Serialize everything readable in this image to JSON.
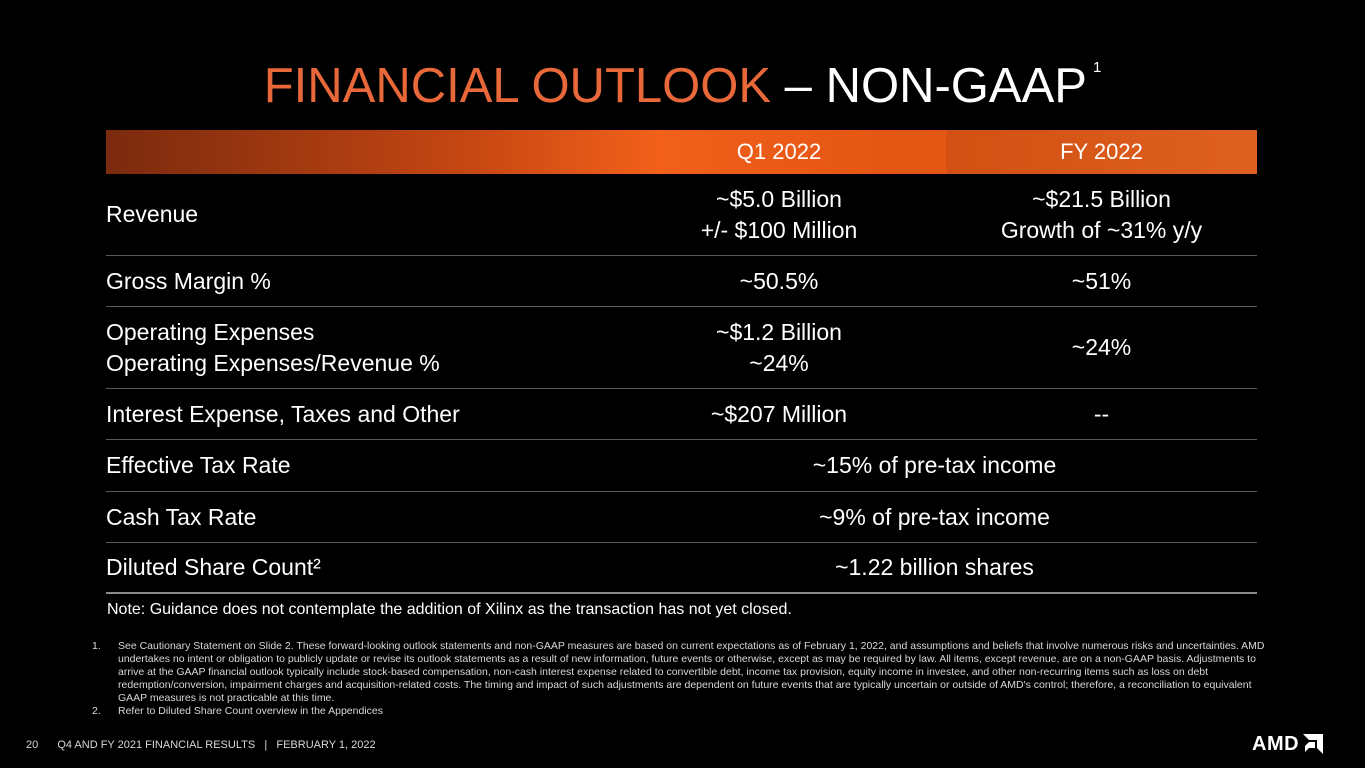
{
  "title": {
    "part1": "FINANCIAL OUTLOOK",
    "dash": "–",
    "part2": "NON-GAAP",
    "sup": "1"
  },
  "table": {
    "headers": [
      "",
      "Q1 2022",
      "FY 2022"
    ],
    "rows": {
      "revenue": {
        "label": "Revenue",
        "q1_line1": "~$5.0 Billion",
        "q1_line2": "+/- $100 Million",
        "fy_line1": "~$21.5 Billion",
        "fy_line2": "Growth of ~31% y/y"
      },
      "gross_margin": {
        "label": "Gross Margin %",
        "q1": "~50.5%",
        "fy": "~51%"
      },
      "opex": {
        "label_line1": "Operating Expenses",
        "label_line2": "Operating Expenses/Revenue %",
        "q1_line1": "~$1.2 Billion",
        "q1_line2": "~24%",
        "fy": "~24%"
      },
      "interest": {
        "label": "Interest Expense, Taxes and Other",
        "q1": "~$207 Million",
        "fy": "--"
      },
      "tax_rate": {
        "label": "Effective Tax Rate",
        "value": "~15% of pre-tax income"
      },
      "cash_tax": {
        "label": "Cash Tax Rate",
        "value": "~9% of pre-tax income"
      },
      "share_count": {
        "label": "Diluted Share Count²",
        "value": "~1.22 billion shares"
      }
    }
  },
  "note": "Note: Guidance does not contemplate the addition of Xilinx as the transaction has not yet closed.",
  "footnotes": [
    {
      "num": "1.",
      "text": "See Cautionary Statement on Slide 2. These forward-looking outlook statements and non-GAAP measures are based on current expectations as of February 1, 2022, and assumptions and beliefs that involve numerous risks and uncertainties. AMD undertakes no intent or obligation to publicly update or revise its outlook statements as a result of new information, future events or otherwise, except as may be required by law. All items, except revenue, are on a non-GAAP basis. Adjustments to arrive at the GAAP financial outlook typically include stock-based compensation, non-cash interest expense related to convertible debt, income tax provision, equity income in investee, and other non-recurring items such as loss on debt redemption/conversion, impairment charges and acquisition-related costs. The timing and impact of such adjustments are dependent on future events that are typically uncertain or outside of AMD's control; therefore, a reconciliation to equivalent GAAP measures is not practicable at this time."
    },
    {
      "num": "2.",
      "text": "Refer to Diluted Share Count overview in the Appendices"
    }
  ],
  "footer": {
    "page": "20",
    "text": "Q4 AND FY 2021 FINANCIAL RESULTS   |   FEBRUARY 1, 2022"
  },
  "logo": {
    "text": "AMD",
    "icon": "amd-arrow-icon"
  },
  "colors": {
    "accent": "#e8683a",
    "header_bar": "#f2601a",
    "background": "#000000"
  }
}
